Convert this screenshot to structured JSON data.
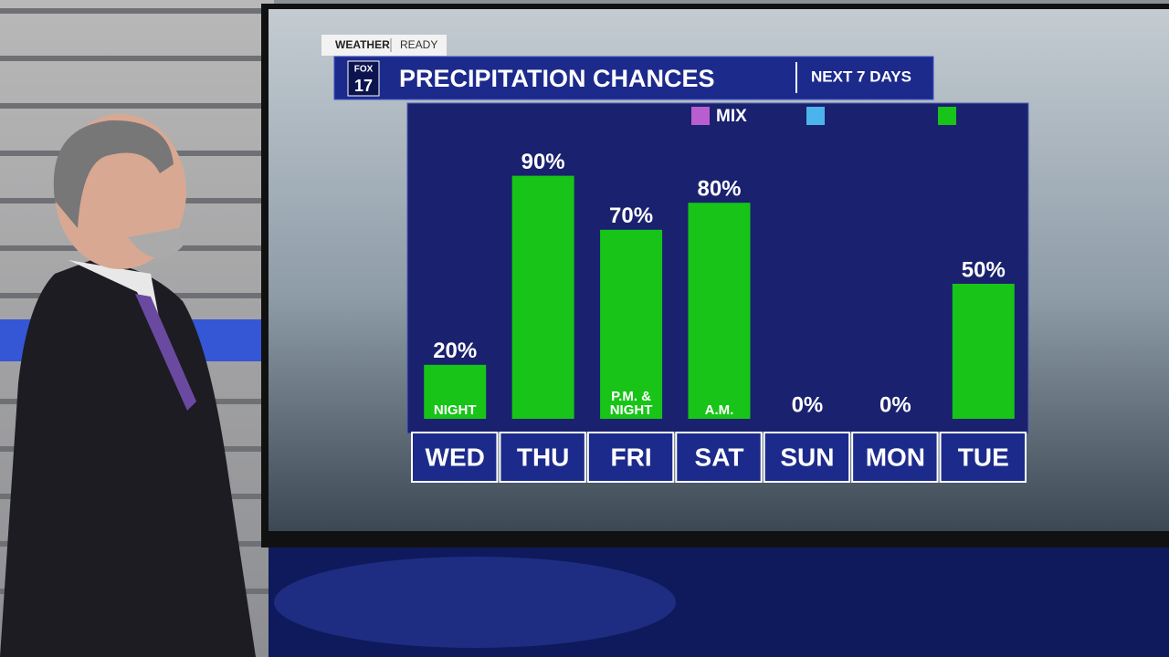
{
  "brand": {
    "tag_left": "WEATHER",
    "tag_right": "READY",
    "logo_top": "FOX",
    "logo_bottom": "17",
    "range_label": "NEXT 7 DAYS"
  },
  "chart_data": {
    "type": "bar",
    "title": "PRECIPITATION CHANCES",
    "categories": [
      "WED",
      "THU",
      "FRI",
      "SAT",
      "SUN",
      "MON",
      "TUE"
    ],
    "values": [
      20,
      90,
      70,
      80,
      0,
      0,
      50
    ],
    "value_labels": [
      "20%",
      "90%",
      "70%",
      "80%",
      "0%",
      "0%",
      "50%"
    ],
    "notes": [
      "NIGHT",
      null,
      "P.M. & NIGHT",
      "A.M.",
      null,
      null,
      null
    ],
    "color": "#17c417",
    "ylim": [
      0,
      100
    ],
    "legend": [
      {
        "name": "MIX",
        "color": "#b85ed0"
      },
      {
        "name": null,
        "color": "#4cb4ec"
      },
      {
        "name": null,
        "color": "#17c417"
      }
    ]
  }
}
